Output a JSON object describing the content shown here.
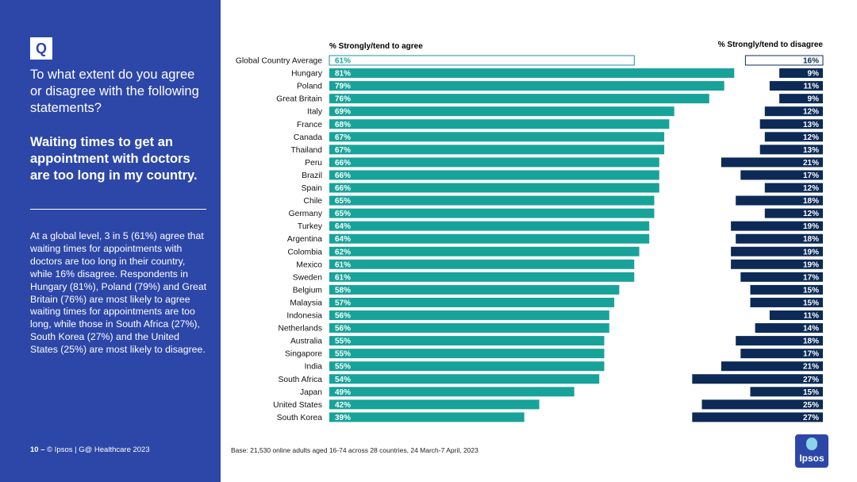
{
  "badge": "Q",
  "question": "To what extent do you agree or disagree with the following statements?",
  "statement": "Waiting times to get an appointment with doctors are too long in my country.",
  "summary": "At a global level, 3 in 5 (61%) agree that waiting times for appointments with doctors are too long in their country, while 16% disagree. Respondents in Hungary (81%), Poland (79%) and Great Britain (76%) are most likely to agree waiting times for appointments are too long, while those in South Africa (27%), South Korea (27%) and the United States (25%) are most likely to disagree.",
  "footer": {
    "page": "10 –",
    "source": "© Ipsos | G@ Healthcare 2023",
    "base": "Base: 21,530 online adults aged 16-74 across 28 countries, 24 March-7 April, 2023"
  },
  "logo_text": "Ipsos",
  "colors": {
    "sidebar": "#2d47a8",
    "agree": "#17a39a",
    "disagree": "#0c2a55",
    "average_outline": "#1a8fa0"
  },
  "chart_data": {
    "type": "bar",
    "agree_label": "% Strongly/tend to agree",
    "disagree_label": "% Strongly/tend to disagree",
    "categories": [
      "Global Country Average",
      "Hungary",
      "Poland",
      "Great Britain",
      "Italy",
      "France",
      "Canada",
      "Thailand",
      "Peru",
      "Brazil",
      "Spain",
      "Chile",
      "Germany",
      "Turkey",
      "Argentina",
      "Colombia",
      "Mexico",
      "Sweden",
      "Belgium",
      "Malaysia",
      "Indonesia",
      "Netherlands",
      "Australia",
      "Singapore",
      "India",
      "South Africa",
      "Japan",
      "United States",
      "South Korea"
    ],
    "series": [
      {
        "name": "% Strongly/tend to agree",
        "values": [
          61,
          81,
          79,
          76,
          69,
          68,
          67,
          67,
          66,
          66,
          66,
          65,
          65,
          64,
          64,
          62,
          61,
          61,
          58,
          57,
          56,
          56,
          55,
          55,
          55,
          54,
          49,
          42,
          39
        ]
      },
      {
        "name": "% Strongly/tend to disagree",
        "values": [
          16,
          9,
          11,
          9,
          12,
          13,
          12,
          13,
          21,
          17,
          12,
          18,
          12,
          19,
          18,
          19,
          19,
          17,
          15,
          15,
          11,
          14,
          18,
          17,
          21,
          27,
          15,
          25,
          27
        ]
      }
    ],
    "value_suffix": "%",
    "highlight_first": true
  }
}
